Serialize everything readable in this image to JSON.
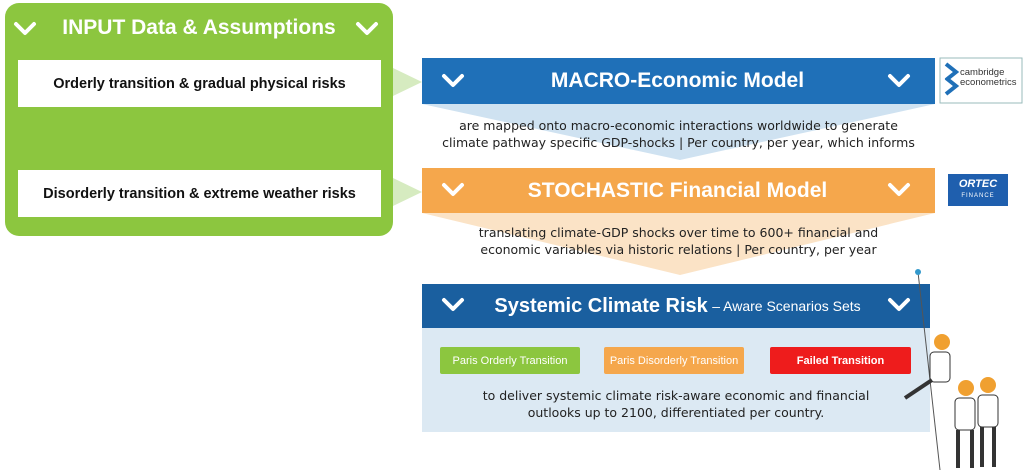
{
  "input_panel": {
    "title": "INPUT Data & Assumptions",
    "items": [
      "Orderly transition & gradual physical risks",
      "Disorderly transition & extreme weather risks"
    ]
  },
  "models": [
    {
      "title": "MACRO-Economic Model",
      "description": [
        "are mapped onto macro-economic interactions worldwide to generate",
        "climate pathway specific GDP-shocks | Per country, per year, which informs"
      ],
      "logo": [
        "cambridge",
        "econometrics"
      ]
    },
    {
      "title": "STOCHASTIC Financial Model",
      "description": [
        "translating climate-GDP shocks over time to 600+ financial and",
        "economic variables via historic relations | Per country, per year"
      ],
      "logo": [
        "ORTEC",
        "FINANCE"
      ]
    }
  ],
  "output": {
    "title": "Systemic Climate Risk",
    "subtitle": "– Aware Scenarios Sets",
    "scenarios": [
      "Paris Orderly Transition",
      "Paris Disorderly Transition",
      "Failed Transition"
    ],
    "description": [
      "to deliver systemic climate risk-aware economic and financial",
      "outlooks up to 2100, differentiated per country."
    ]
  }
}
